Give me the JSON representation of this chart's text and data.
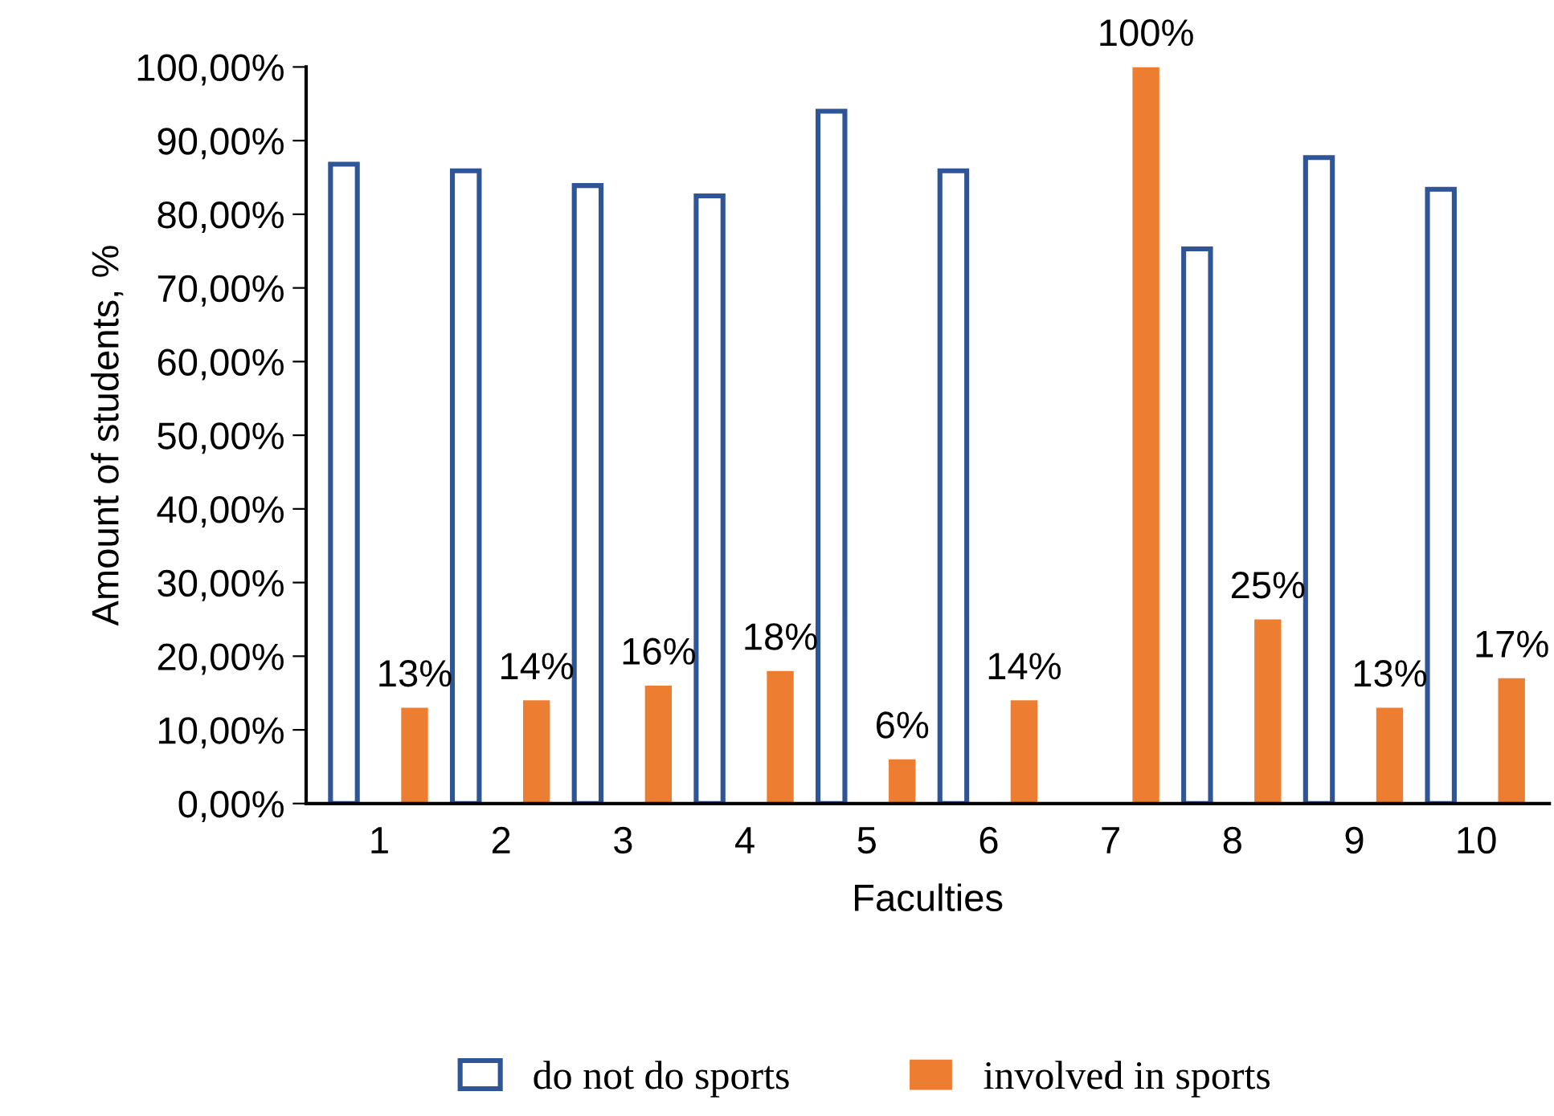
{
  "chart_data": {
    "type": "bar",
    "xlabel": "Faculties",
    "ylabel": "Amount of students, %",
    "categories": [
      "1",
      "2",
      "3",
      "4",
      "5",
      "6",
      "7",
      "8",
      "9",
      "10"
    ],
    "series": [
      {
        "name": "do not do sports",
        "color": "#2f5597",
        "values": [
          86.8,
          85.9,
          83.9,
          82.5,
          94,
          85.9,
          null,
          75.3,
          87.7,
          83.4
        ]
      },
      {
        "name": "involved in sports",
        "color": "#ed7d31",
        "values": [
          13,
          14,
          16,
          18,
          6,
          14,
          100,
          25,
          13,
          17
        ],
        "value_labels": [
          "13%",
          "14%",
          "16%",
          "18%",
          "6%",
          "14%",
          "100%",
          "25%",
          "13%",
          "17%"
        ]
      }
    ],
    "ylim": [
      0,
      100
    ],
    "yticks": [
      {
        "value": 0,
        "label": "0,00%"
      },
      {
        "value": 10,
        "label": "10,00%"
      },
      {
        "value": 20,
        "label": "20,00%"
      },
      {
        "value": 30,
        "label": "30,00%"
      },
      {
        "value": 40,
        "label": "40,00%"
      },
      {
        "value": 50,
        "label": "50,00%"
      },
      {
        "value": 60,
        "label": "60,00%"
      },
      {
        "value": 70,
        "label": "70,00%"
      },
      {
        "value": 80,
        "label": "80,00%"
      },
      {
        "value": 90,
        "label": "90,00%"
      },
      {
        "value": 100,
        "label": "100,00%"
      }
    ],
    "grid": false,
    "legend": "bottom"
  }
}
